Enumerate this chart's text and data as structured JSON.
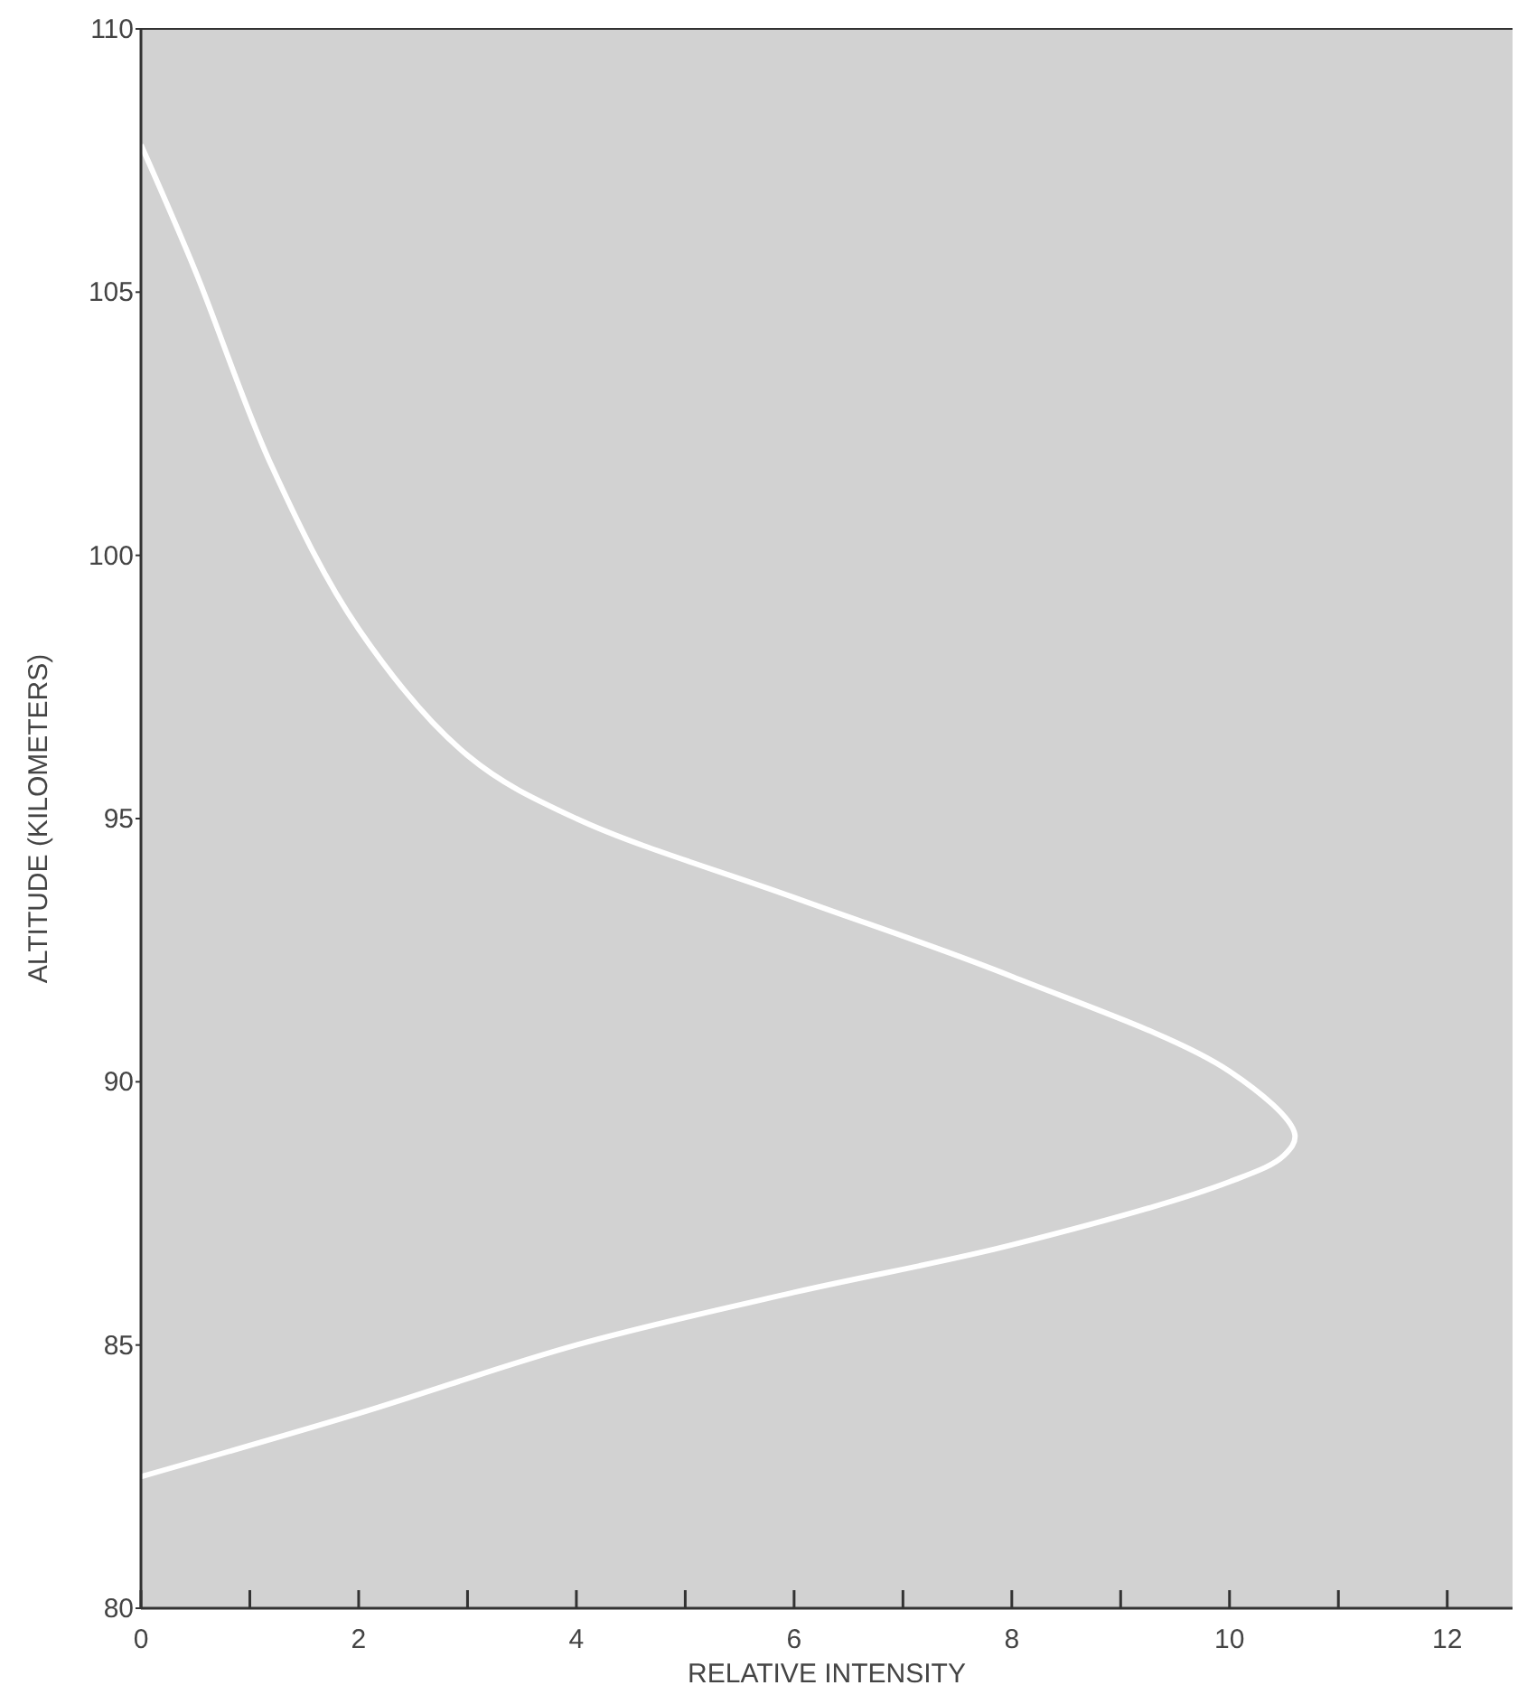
{
  "chart_data": {
    "type": "line",
    "xlabel": "RELATIVE INTENSITY",
    "ylabel": "ALTITUDE (KILOMETERS)",
    "x": [
      0,
      2,
      4,
      6,
      8,
      10,
      10.5,
      10.6,
      10,
      8,
      6,
      4,
      3,
      2,
      1.2,
      0.5,
      0
    ],
    "series": [
      {
        "color": "#ffffff",
        "values": [
          82.5,
          83.7,
          85.0,
          86.0,
          86.9,
          88.1,
          88.6,
          89.0,
          90.2,
          92.0,
          93.5,
          95.0,
          96.2,
          98.6,
          101.7,
          105.4,
          107.8
        ]
      }
    ],
    "xlim": [
      0,
      12.6
    ],
    "ylim": [
      80,
      110
    ],
    "xticks": [
      0,
      {
        "value": 1,
        "label": null
      },
      2,
      {
        "value": 3,
        "label": null
      },
      4,
      {
        "value": 5,
        "label": null
      },
      6,
      {
        "value": 7,
        "label": null
      },
      8,
      {
        "value": 9,
        "label": null
      },
      10,
      {
        "value": 11,
        "label": null
      },
      12
    ],
    "yticks": [
      80,
      85,
      90,
      95,
      100,
      105,
      110
    ],
    "grid": false,
    "marker": "none",
    "line_style": "solid"
  }
}
